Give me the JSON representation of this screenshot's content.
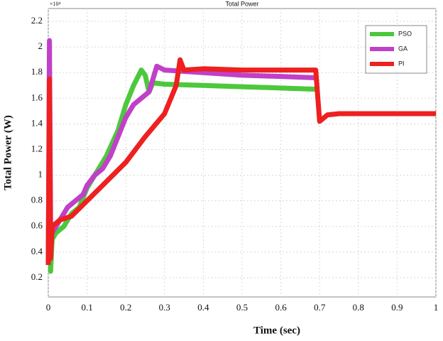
{
  "chart_data": {
    "type": "line",
    "title": "Total Power",
    "xlabel": "Time (sec)",
    "ylabel": "Total Power (W)",
    "y_exponent": "×10⁴",
    "xlim": [
      0,
      1
    ],
    "ylim": [
      0.05,
      2.3
    ],
    "xticks": [
      0,
      0.1,
      0.2,
      0.3,
      0.4,
      0.5,
      0.6,
      0.7,
      0.8,
      0.9,
      1
    ],
    "yticks": [
      0.2,
      0.4,
      0.6,
      0.8,
      1,
      1.2,
      1.4,
      1.6,
      1.8,
      2,
      2.2
    ],
    "grid": true,
    "legend": "upper right",
    "series": [
      {
        "name": "PSO",
        "color": "#4cc83c",
        "x": [
          0,
          0.003,
          0.006,
          0.01,
          0.02,
          0.04,
          0.06,
          0.08,
          0.1,
          0.12,
          0.15,
          0.18,
          0.2,
          0.22,
          0.24,
          0.25,
          0.26,
          0.27,
          0.3,
          0.4,
          0.5,
          0.6,
          0.69
        ],
        "values": [
          0.3,
          1.6,
          0.25,
          0.5,
          0.55,
          0.6,
          0.7,
          0.75,
          0.9,
          1.0,
          1.15,
          1.35,
          1.55,
          1.7,
          1.82,
          1.78,
          1.65,
          1.72,
          1.71,
          1.7,
          1.69,
          1.68,
          1.67
        ]
      },
      {
        "name": "GA",
        "color": "#c040c8",
        "x": [
          0,
          0.003,
          0.006,
          0.01,
          0.03,
          0.05,
          0.07,
          0.09,
          0.1,
          0.12,
          0.14,
          0.16,
          0.18,
          0.2,
          0.22,
          0.26,
          0.28,
          0.3,
          0.4,
          0.5,
          0.6,
          0.69
        ],
        "values": [
          0.3,
          2.05,
          0.6,
          0.55,
          0.65,
          0.75,
          0.8,
          0.85,
          0.92,
          1.0,
          1.05,
          1.15,
          1.3,
          1.45,
          1.55,
          1.65,
          1.85,
          1.82,
          1.8,
          1.78,
          1.77,
          1.76
        ]
      },
      {
        "name": "PI",
        "color": "#ee2020",
        "x": [
          0,
          0.003,
          0.006,
          0.01,
          0.03,
          0.06,
          0.1,
          0.15,
          0.2,
          0.25,
          0.3,
          0.33,
          0.34,
          0.35,
          0.4,
          0.5,
          0.6,
          0.69,
          0.7,
          0.72,
          0.75,
          0.8,
          0.9,
          1.0
        ],
        "values": [
          0.3,
          1.75,
          0.35,
          0.6,
          0.65,
          0.68,
          0.8,
          0.95,
          1.1,
          1.3,
          1.48,
          1.7,
          1.9,
          1.82,
          1.83,
          1.82,
          1.82,
          1.82,
          1.42,
          1.47,
          1.48,
          1.48,
          1.48,
          1.48
        ]
      }
    ]
  }
}
